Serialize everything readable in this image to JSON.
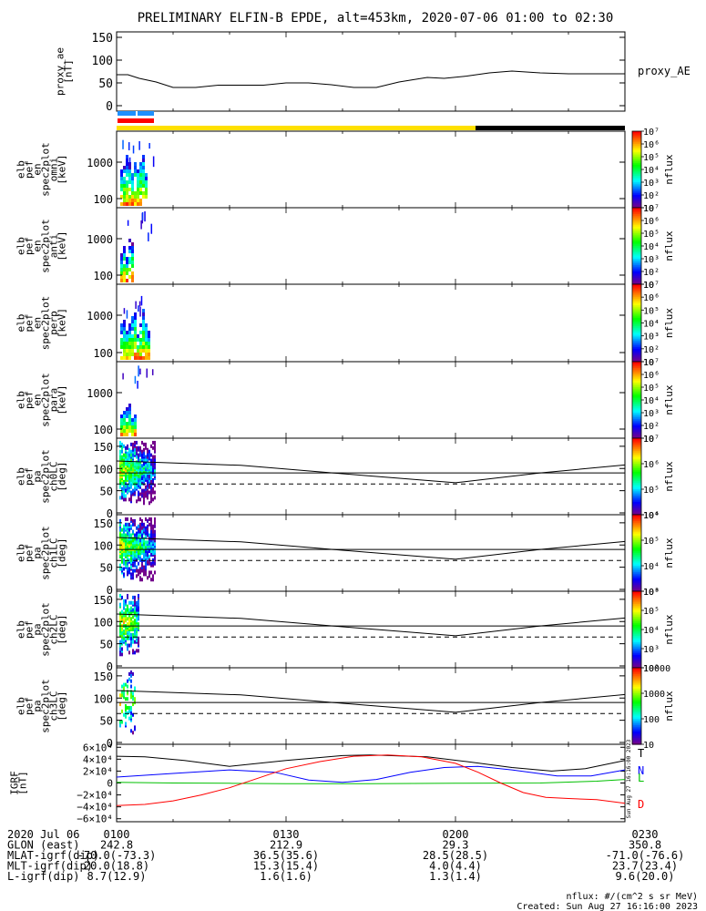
{
  "title": "PRELIMINARY ELFIN-B EPDE, alt=453km, 2020-07-06 01:00 to 02:30",
  "colors": {
    "cyan_bar": "#1e90ff",
    "red_bar": "#ff0000",
    "yellow_bar": "#ffe000",
    "black_bar": "#000000",
    "line_T": "#000000",
    "line_N": "#0000ff",
    "line_L": "#00c000",
    "line_D": "#ff0000"
  },
  "chart_data": [
    {
      "type": "line",
      "ylabel": [
        "proxy_ae",
        "[nT]"
      ],
      "ylim": [
        0,
        150
      ],
      "yticks": [
        "0",
        "50",
        "100",
        "150"
      ],
      "series": [
        {
          "name": "proxy_AE",
          "x": [
            0,
            2,
            4,
            7,
            10,
            14,
            18,
            22,
            26,
            30,
            34,
            38,
            42,
            46,
            50,
            55,
            58,
            62,
            66,
            70,
            75,
            80,
            85,
            90
          ],
          "values": [
            68,
            68,
            60,
            52,
            40,
            40,
            45,
            45,
            45,
            50,
            50,
            46,
            40,
            40,
            52,
            62,
            60,
            65,
            72,
            76,
            72,
            70,
            70,
            70
          ]
        }
      ]
    },
    {
      "type": "heatmap",
      "ylabel": [
        "elb",
        "pef",
        "en",
        "spec2plot",
        "omni",
        "[keV]"
      ],
      "ytick_labels": [
        "100",
        "1000"
      ],
      "colorbar": {
        "label": "nflux",
        "ticks": [
          "10",
          "10²",
          "10³",
          "10⁴",
          "10⁵",
          "10⁶",
          "10⁷"
        ]
      }
    },
    {
      "type": "heatmap",
      "ylabel": [
        "elb",
        "pef",
        "en",
        "spec2plot",
        "anti",
        "[keV]"
      ],
      "ytick_labels": [
        "100",
        "1000"
      ],
      "colorbar": {
        "label": "nflux",
        "ticks": [
          "10",
          "10²",
          "10³",
          "10⁴",
          "10⁵",
          "10⁶",
          "10⁷"
        ]
      }
    },
    {
      "type": "heatmap",
      "ylabel": [
        "elb",
        "pef",
        "en",
        "spec2plot",
        "perp",
        "[keV]"
      ],
      "ytick_labels": [
        "100",
        "1000"
      ],
      "colorbar": {
        "label": "nflux",
        "ticks": [
          "10",
          "10²",
          "10³",
          "10⁴",
          "10⁵",
          "10⁶",
          "10⁷"
        ]
      }
    },
    {
      "type": "heatmap",
      "ylabel": [
        "elb",
        "pef",
        "en",
        "spec2plot",
        "para",
        "[keV]"
      ],
      "ytick_labels": [
        "100",
        "1000"
      ],
      "colorbar": {
        "label": "nflux",
        "ticks": [
          "10",
          "10²",
          "10³",
          "10⁴",
          "10⁵",
          "10⁶",
          "10⁷"
        ]
      }
    },
    {
      "type": "heatmap",
      "ylabel": [
        "elb",
        "pef",
        "pa",
        "spec2plot",
        "ch0LC",
        "[deg]"
      ],
      "ylim": [
        0,
        160
      ],
      "yticks": [
        "0",
        "50",
        "100",
        "150"
      ],
      "lines": {
        "solid_upper": [
          [
            0,
            117
          ],
          [
            22,
            107
          ],
          [
            44,
            84
          ],
          [
            60,
            68
          ],
          [
            75,
            90
          ],
          [
            90,
            108
          ]
        ],
        "solid_mid": [
          [
            0,
            90
          ],
          [
            90,
            90
          ]
        ],
        "dashed": [
          [
            0,
            65
          ],
          [
            90,
            65
          ]
        ]
      },
      "colorbar": {
        "label": "nflux",
        "ticks": [
          "10⁴",
          "10⁵",
          "10⁶",
          "10⁷"
        ]
      }
    },
    {
      "type": "heatmap",
      "ylabel": [
        "elb",
        "pef",
        "pa",
        "spec2plot",
        "ch1LC",
        "[deg]"
      ],
      "ylim": [
        0,
        160
      ],
      "yticks": [
        "0",
        "50",
        "100",
        "150"
      ],
      "lines": {
        "solid_upper": [
          [
            0,
            117
          ],
          [
            22,
            107
          ],
          [
            44,
            84
          ],
          [
            60,
            68
          ],
          [
            75,
            90
          ],
          [
            90,
            108
          ]
        ],
        "solid_mid": [
          [
            0,
            90
          ],
          [
            90,
            90
          ]
        ],
        "dashed": [
          [
            0,
            65
          ],
          [
            90,
            65
          ]
        ]
      },
      "colorbar": {
        "label": "nflux",
        "ticks": [
          "10³",
          "10⁴",
          "10⁵",
          "10⁶"
        ]
      }
    },
    {
      "type": "heatmap",
      "ylabel": [
        "elb",
        "pef",
        "pa",
        "spec2plot",
        "ch2LC",
        "[deg]"
      ],
      "ylim": [
        0,
        160
      ],
      "yticks": [
        "0",
        "50",
        "100",
        "150"
      ],
      "lines": {
        "solid_upper": [
          [
            0,
            117
          ],
          [
            22,
            107
          ],
          [
            44,
            84
          ],
          [
            60,
            68
          ],
          [
            75,
            90
          ],
          [
            90,
            108
          ]
        ],
        "solid_mid": [
          [
            0,
            90
          ],
          [
            90,
            90
          ]
        ],
        "dashed": [
          [
            0,
            65
          ],
          [
            90,
            65
          ]
        ]
      },
      "colorbar": {
        "label": "nflux",
        "ticks": [
          "10²",
          "10³",
          "10⁴",
          "10⁵",
          "10⁶"
        ]
      }
    },
    {
      "type": "heatmap",
      "ylabel": [
        "elb",
        "pef",
        "pa",
        "spec2plot",
        "ch3LC",
        "[deg]"
      ],
      "ylim": [
        0,
        160
      ],
      "yticks": [
        "0",
        "50",
        "100",
        "150"
      ],
      "lines": {
        "solid_upper": [
          [
            0,
            117
          ],
          [
            22,
            107
          ],
          [
            44,
            84
          ],
          [
            60,
            68
          ],
          [
            75,
            90
          ],
          [
            90,
            108
          ]
        ],
        "solid_mid": [
          [
            0,
            90
          ],
          [
            90,
            90
          ]
        ],
        "dashed": [
          [
            0,
            65
          ],
          [
            90,
            65
          ]
        ]
      },
      "colorbar": {
        "label": "nflux",
        "ticks": [
          "10",
          "100",
          "1000",
          "10000"
        ]
      }
    },
    {
      "type": "line",
      "ylabel": [
        "IGRF",
        "[nT]"
      ],
      "ylim": [
        -65000,
        65000
      ],
      "yticks": [
        "−6×10⁴",
        "−4×10⁴",
        "−2×10⁴",
        "0",
        "2×10⁴",
        "4×10⁴",
        "6×10⁴"
      ],
      "series": [
        {
          "name": "T",
          "x": [
            0,
            5,
            12,
            20,
            30,
            40,
            45,
            55,
            62,
            70,
            77,
            83,
            90
          ],
          "values": [
            45000,
            44000,
            38000,
            28000,
            38000,
            46000,
            47000,
            44000,
            36000,
            26000,
            20000,
            24000,
            38000
          ]
        },
        {
          "name": "N",
          "x": [
            0,
            10,
            20,
            28,
            34,
            40,
            46,
            52,
            58,
            64,
            70,
            78,
            84,
            90
          ],
          "values": [
            10000,
            16000,
            22000,
            18000,
            5000,
            1000,
            6000,
            18000,
            26000,
            28000,
            22000,
            12000,
            12000,
            22000
          ]
        },
        {
          "name": "L",
          "x": [
            0,
            10,
            20,
            30,
            45,
            60,
            75,
            85,
            90
          ],
          "values": [
            1000,
            0,
            -500,
            -1000,
            -1000,
            -500,
            0,
            3000,
            6000
          ]
        },
        {
          "name": "D",
          "x": [
            0,
            5,
            10,
            15,
            20,
            25,
            30,
            36,
            42,
            48,
            54,
            60,
            64,
            68,
            72,
            76,
            80,
            85,
            90
          ],
          "values": [
            -38000,
            -36000,
            -30000,
            -20000,
            -8000,
            8000,
            24000,
            36000,
            45000,
            47000,
            44000,
            33000,
            18000,
            0,
            -16000,
            -24000,
            -26000,
            -28000,
            -34000
          ]
        }
      ]
    }
  ],
  "xaxis": {
    "ticks": [
      "0100",
      "0130",
      "0200",
      "0230"
    ],
    "rows": [
      {
        "label": "2020 Jul 06",
        "values": [
          "0100",
          "0130",
          "0200",
          "0230"
        ]
      },
      {
        "label": "GLON (east)",
        "values": [
          "242.8",
          "212.9",
          "29.3",
          "350.8"
        ]
      },
      {
        "label": "MLAT-igrf(dip)",
        "values": [
          "-70.0(-73.3)",
          "36.5(35.6)",
          "28.5(28.5)",
          "-71.0(-76.6)"
        ]
      },
      {
        "label": "MLT-igrf(dip)",
        "values": [
          "20.0(18.8)",
          "15.3(15.4)",
          "4.0(4.4)",
          "23.7(23.4)"
        ]
      },
      {
        "label": "L-igrf(dip)",
        "values": [
          "8.7(12.9)",
          "1.6(1.6)",
          "1.3(1.4)",
          "9.6(20.0)"
        ]
      }
    ]
  },
  "footer": {
    "units": "nflux: #/(cm^2 s sr MeV)",
    "created": "Created: Sun Aug 27 16:16:00 2023",
    "side_stamp": "Sun Aug 27 16:16:00 2023"
  }
}
